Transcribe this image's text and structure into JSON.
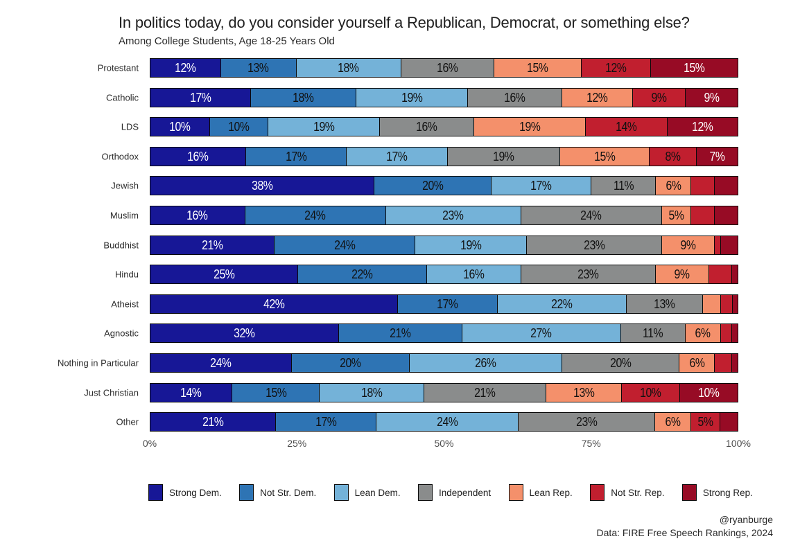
{
  "title": "In politics today, do you consider yourself a Republican, Democrat, or something else?",
  "subtitle": "Among College Students, Age 18-25 Years Old",
  "credits": {
    "handle": "@ryanburge",
    "source": "Data: FIRE Free Speech Rankings, 2024"
  },
  "chart_data": {
    "type": "bar",
    "orientation": "horizontal_stacked",
    "title": "In politics today, do you consider yourself a Republican, Democrat, or something else?",
    "subtitle": "Among College Students, Age 18-25 Years Old",
    "xlabel": "",
    "ylabel": "",
    "xlim": [
      0,
      100
    ],
    "grid": false,
    "legend_position": "bottom",
    "label_min_value": 5,
    "tick_labels": [
      "0%",
      "25%",
      "50%",
      "75%",
      "100%"
    ],
    "categories": [
      "Protestant",
      "Catholic",
      "LDS",
      "Orthodox",
      "Jewish",
      "Muslim",
      "Buddhist",
      "Hindu",
      "Atheist",
      "Agnostic",
      "Nothing in Particular",
      "Just Christian",
      "Other"
    ],
    "series": [
      {
        "name": "Strong Dem.",
        "color": "#171796",
        "label_color": "#ffffff",
        "values": [
          12,
          17,
          10,
          16,
          38,
          16,
          21,
          25,
          42,
          32,
          24,
          14,
          21
        ]
      },
      {
        "name": "Not Str. Dem.",
        "color": "#2E74B4",
        "label_color": "#111111",
        "values": [
          13,
          18,
          10,
          17,
          20,
          24,
          24,
          22,
          17,
          21,
          20,
          15,
          17
        ]
      },
      {
        "name": "Lean Dem.",
        "color": "#74B2D8",
        "label_color": "#111111",
        "values": [
          18,
          19,
          19,
          17,
          17,
          23,
          19,
          16,
          22,
          27,
          26,
          18,
          24
        ]
      },
      {
        "name": "Independent",
        "color": "#8A8C8C",
        "label_color": "#111111",
        "values": [
          16,
          16,
          16,
          19,
          11,
          24,
          23,
          23,
          13,
          11,
          20,
          21,
          23
        ]
      },
      {
        "name": "Lean Rep.",
        "color": "#F4906B",
        "label_color": "#111111",
        "values": [
          15,
          12,
          19,
          15,
          6,
          5,
          9,
          9,
          3,
          6,
          6,
          13,
          6
        ]
      },
      {
        "name": "Not Str. Rep.",
        "color": "#C11F2F",
        "label_color": "#111111",
        "values": [
          12,
          9,
          14,
          8,
          4,
          4,
          1,
          4,
          2,
          2,
          3,
          10,
          5
        ]
      },
      {
        "name": "Strong Rep.",
        "color": "#970B25",
        "label_color": "#ffffff",
        "values": [
          15,
          9,
          12,
          7,
          4,
          4,
          3,
          1,
          1,
          1,
          1,
          10,
          3
        ]
      }
    ]
  }
}
